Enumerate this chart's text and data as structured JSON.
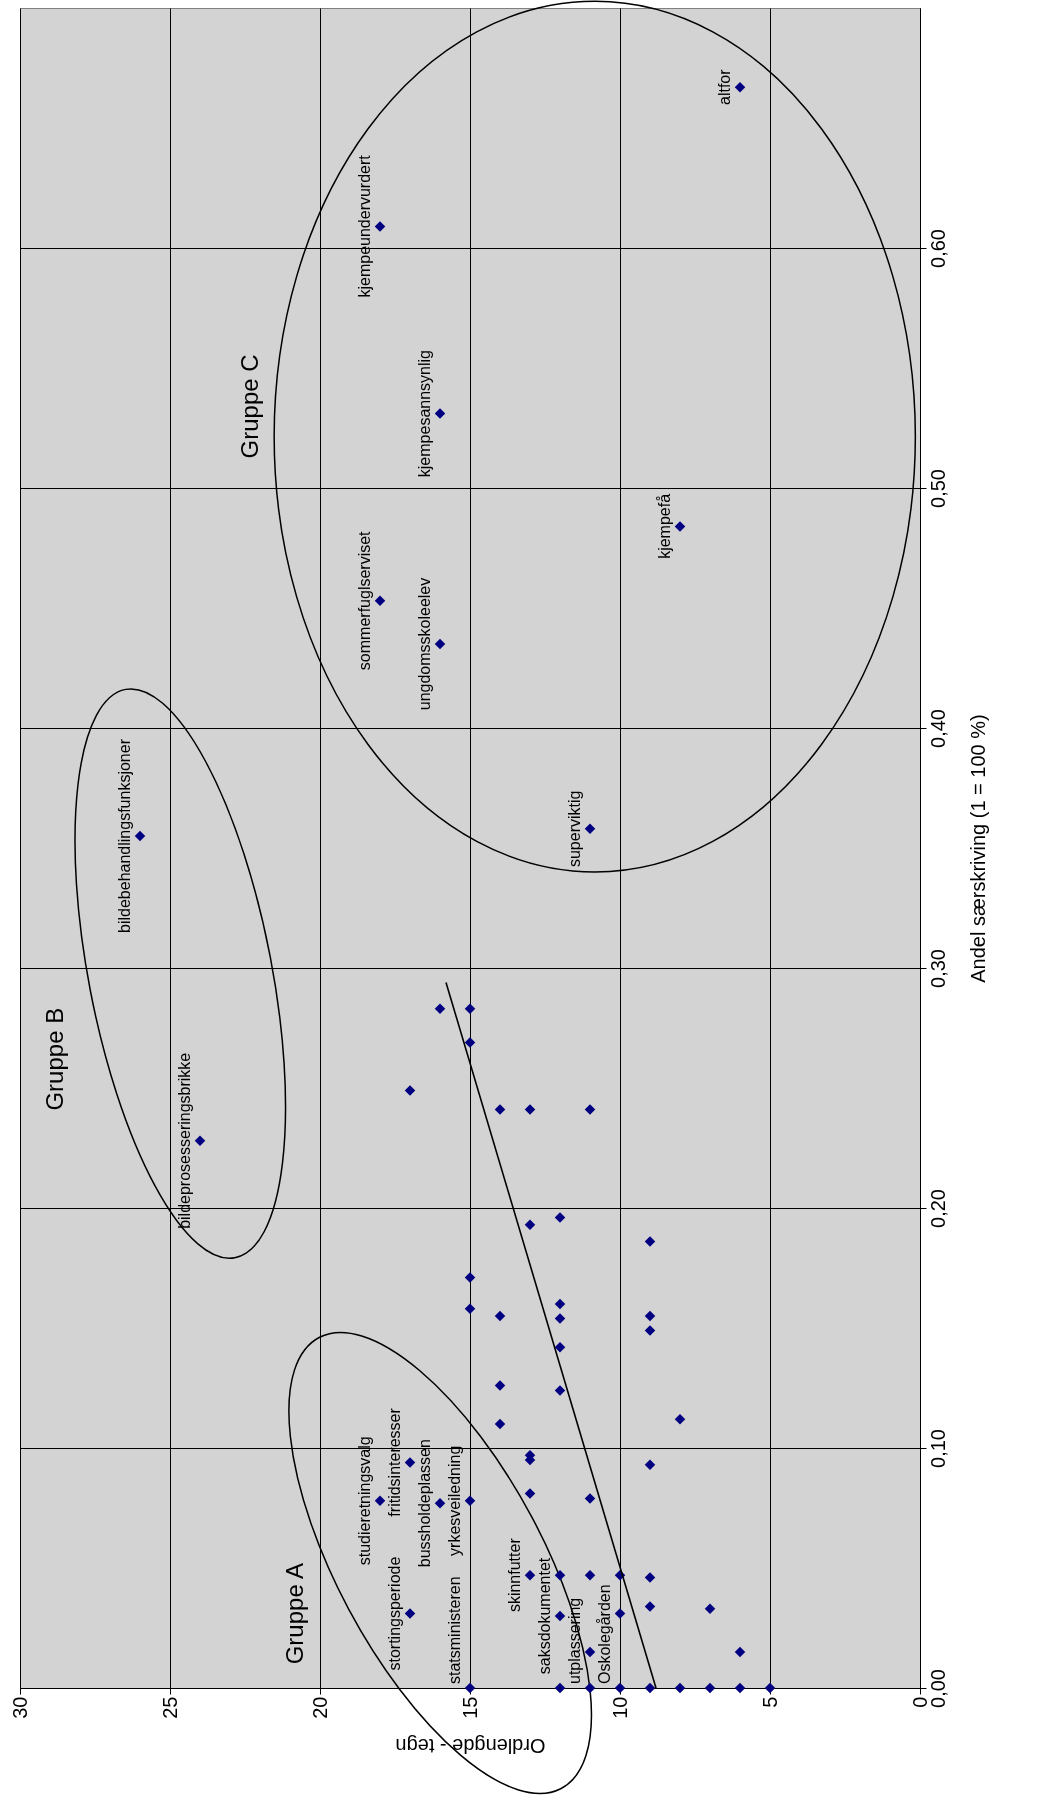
{
  "chart_data": {
    "type": "scatter",
    "xlabel": "Ordlengde - tegn",
    "ylabel": "Andel særskriving (1 = 100 %)",
    "xlim": [
      30,
      0
    ],
    "ylim": [
      0,
      0.7
    ],
    "xticks": [
      30,
      25,
      20,
      15,
      10,
      5,
      0
    ],
    "yticks": [
      {
        "value": 0,
        "label": "0,00"
      },
      {
        "value": 0.1,
        "label": "0,10"
      },
      {
        "value": 0.2,
        "label": "0,20"
      },
      {
        "value": 0.3,
        "label": "0,30"
      },
      {
        "value": 0.4,
        "label": "0,40"
      },
      {
        "value": 0.5,
        "label": "0,50"
      },
      {
        "value": 0.6,
        "label": "0,60"
      }
    ],
    "grid": true,
    "marker": "diamond",
    "series": [
      {
        "color": "#000080",
        "x": [
          15,
          12,
          11,
          10,
          9,
          8,
          7,
          6,
          5,
          11,
          6,
          17,
          12,
          10,
          9,
          7,
          13,
          12,
          11,
          10,
          9,
          18,
          16,
          15,
          13,
          11,
          17,
          13,
          13,
          9,
          14,
          8,
          14,
          12,
          12,
          15,
          14,
          12,
          12,
          9,
          9,
          15,
          9,
          13,
          12,
          24,
          14,
          13,
          11,
          17,
          15,
          16,
          15,
          26,
          11,
          16,
          18,
          8,
          16,
          18,
          6
        ],
        "values": [
          0,
          0,
          0,
          0,
          0,
          0,
          0,
          0,
          0,
          0.015,
          0.015,
          0.031,
          0.03,
          0.031,
          0.034,
          0.033,
          0.047,
          0.047,
          0.047,
          0.047,
          0.046,
          0.078,
          0.077,
          0.078,
          0.081,
          0.079,
          0.094,
          0.097,
          0.095,
          0.093,
          0.11,
          0.112,
          0.126,
          0.124,
          0.142,
          0.158,
          0.155,
          0.16,
          0.154,
          0.155,
          0.149,
          0.171,
          0.186,
          0.193,
          0.196,
          0.228,
          0.241,
          0.241,
          0.241,
          0.249,
          0.269,
          0.283,
          0.283,
          0.355,
          0.358,
          0.435,
          0.453,
          0.484,
          0.531,
          0.609,
          0.667
        ]
      },
      {
        "type": "line",
        "color": "#000000",
        "marker": "none",
        "x": [
          8.8,
          15.8
        ],
        "values": [
          0,
          0.294
        ]
      }
    ],
    "annotations": [
      {
        "text": "statsministeren",
        "x": 15,
        "y": 0
      },
      {
        "text": "utplassering",
        "x": 12,
        "y": 0
      },
      {
        "text": "Oskolegården",
        "x": 11,
        "y": 0
      },
      {
        "text": "saksdokumentet",
        "x": 12,
        "y": 0.03
      },
      {
        "text": "skinnfutter",
        "x": 13,
        "y": 0.047
      },
      {
        "text": "stortingsperiode",
        "x": 17,
        "y": 0.031
      },
      {
        "text": "studieretningsvalg",
        "x": 18,
        "y": 0.078
      },
      {
        "text": "fritidsinteresser",
        "x": 17,
        "y": 0.094
      },
      {
        "text": "bussholdeplassen",
        "x": 16,
        "y": 0.077
      },
      {
        "text": "yrkesveiledning",
        "x": 15,
        "y": 0.078
      },
      {
        "text": "bildeprosesseringsbrikke",
        "x": 24,
        "y": 0.228
      },
      {
        "text": "bildebehandlingsfunksjoner",
        "x": 26,
        "y": 0.355
      },
      {
        "text": "superviktig",
        "x": 11,
        "y": 0.358
      },
      {
        "text": "ungdomsskoleelev",
        "x": 16,
        "y": 0.435
      },
      {
        "text": "sommerfuglserviset",
        "x": 18,
        "y": 0.453
      },
      {
        "text": "kjempefå",
        "x": 8,
        "y": 0.484
      },
      {
        "text": "kjempesannsynlig",
        "x": 16,
        "y": 0.531
      },
      {
        "text": "kjempeundervurdert",
        "x": 18,
        "y": 0.609
      },
      {
        "text": "altfor",
        "x": 6,
        "y": 0.667
      },
      "Gruppe A",
      "Gruppe B",
      "Gruppe C"
    ]
  }
}
